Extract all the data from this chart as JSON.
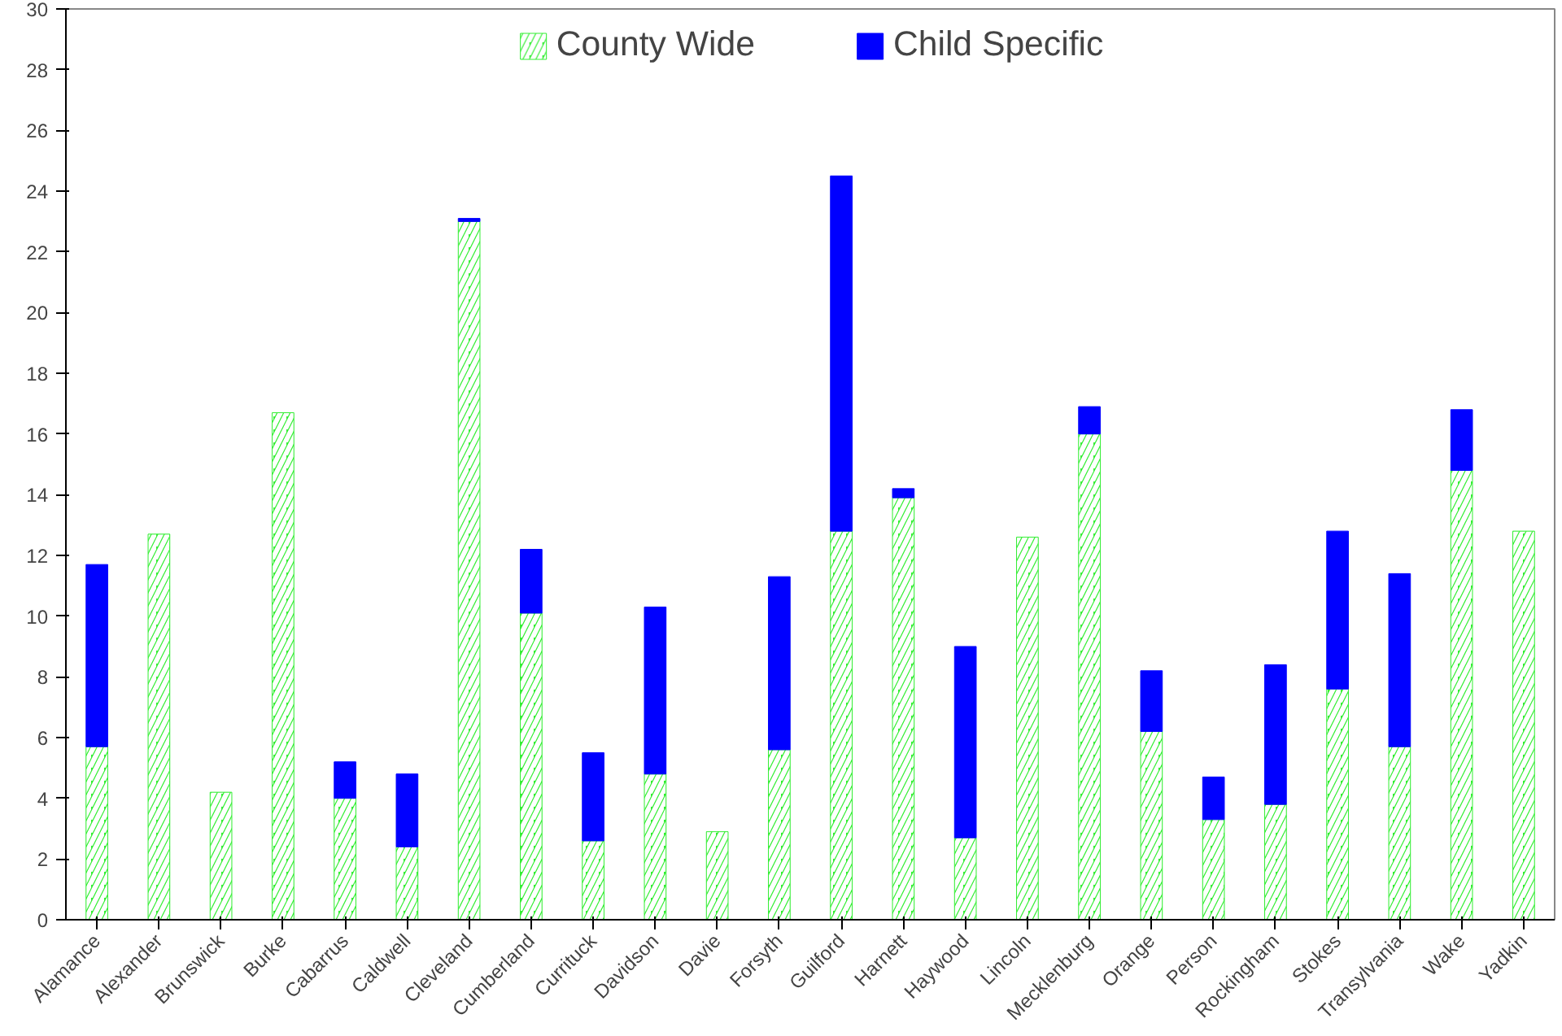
{
  "chart_data": {
    "type": "bar",
    "stacked": true,
    "categories": [
      "Alamance",
      "Alexander",
      "Brunswick",
      "Burke",
      "Cabarrus",
      "Caldwell",
      "Cleveland",
      "Cumberland",
      "Currituck",
      "Davidson",
      "Davie",
      "Forsyth",
      "Guilford",
      "Harnett",
      "Haywood",
      "Lincoln",
      "Mecklenburg",
      "Orange",
      "Person",
      "Rockingham",
      "Stokes",
      "Transylvania",
      "Wake",
      "Yadkin"
    ],
    "series": [
      {
        "name": "County Wide",
        "color": "#33ee33",
        "values": [
          5.7,
          12.7,
          4.2,
          16.7,
          4.0,
          2.4,
          23.0,
          10.1,
          2.6,
          4.8,
          2.9,
          5.6,
          12.8,
          13.9,
          2.7,
          12.6,
          16.0,
          6.2,
          3.3,
          3.8,
          7.6,
          5.7,
          14.8,
          12.8
        ]
      },
      {
        "name": "Child Specific",
        "color": "#0000ff",
        "values": [
          6.0,
          null,
          null,
          null,
          1.2,
          2.4,
          0.1,
          2.1,
          2.9,
          5.5,
          null,
          5.7,
          11.7,
          0.3,
          6.3,
          null,
          0.9,
          2.0,
          1.4,
          4.6,
          5.2,
          5.7,
          2.0,
          null
        ]
      }
    ],
    "ylim": [
      0,
      30
    ],
    "yticks": [
      0,
      2,
      4,
      6,
      8,
      10,
      12,
      14,
      16,
      18,
      20,
      22,
      24,
      26,
      28,
      30
    ],
    "grid": false,
    "legend": "top"
  }
}
